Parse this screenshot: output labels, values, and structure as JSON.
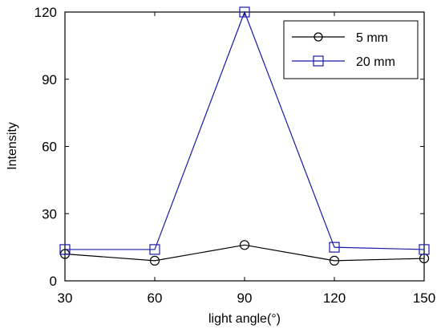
{
  "chart_data": {
    "type": "line",
    "title": "",
    "xlabel": "light angle(°)",
    "ylabel": "Intensity",
    "x": [
      30,
      60,
      90,
      120,
      150
    ],
    "xlim": [
      30,
      150
    ],
    "ylim": [
      0,
      120
    ],
    "xticks": [
      "30",
      "60",
      "90",
      "120",
      "150"
    ],
    "yticks": [
      "0",
      "30",
      "60",
      "90",
      "120"
    ],
    "grid": false,
    "legend_position": "top-right",
    "series": [
      {
        "name": "5 mm",
        "values": [
          12,
          9,
          16,
          9,
          10
        ],
        "color": "#000000",
        "marker": "circle"
      },
      {
        "name": "20 mm",
        "values": [
          14,
          14,
          120,
          15,
          14
        ],
        "color": "#1a1aa8",
        "marker": "square"
      }
    ]
  }
}
